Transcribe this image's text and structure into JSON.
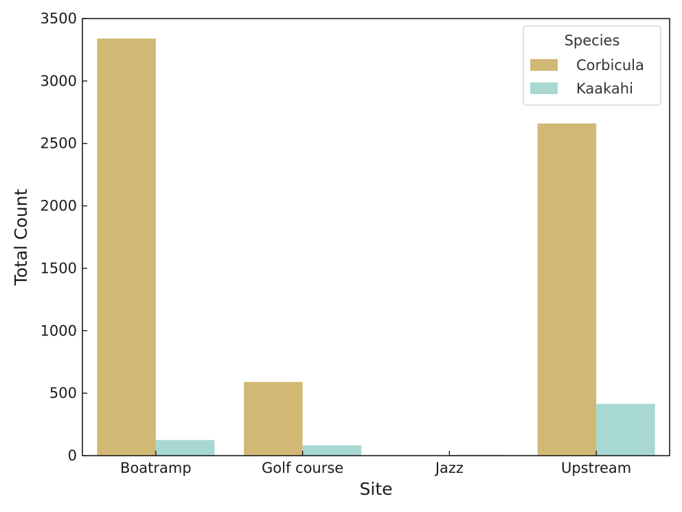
{
  "chart_data": {
    "type": "bar",
    "title": "",
    "xlabel": "Site",
    "ylabel": "Total Count",
    "categories": [
      "Boatramp",
      "Golf course",
      "Jazz",
      "Upstream"
    ],
    "series": [
      {
        "name": "Corbicula",
        "values": [
          3340,
          590,
          0,
          2660
        ],
        "color": "#d1b975"
      },
      {
        "name": "Kaakahi",
        "values": [
          125,
          82,
          6,
          415
        ],
        "color": "#a8d8d2"
      }
    ],
    "ylim": [
      0,
      3500
    ],
    "yticks": [
      0,
      500,
      1000,
      1500,
      2000,
      2500,
      3000,
      3500
    ],
    "grid": false,
    "legend": {
      "title": "Species",
      "position": "top-right"
    }
  }
}
